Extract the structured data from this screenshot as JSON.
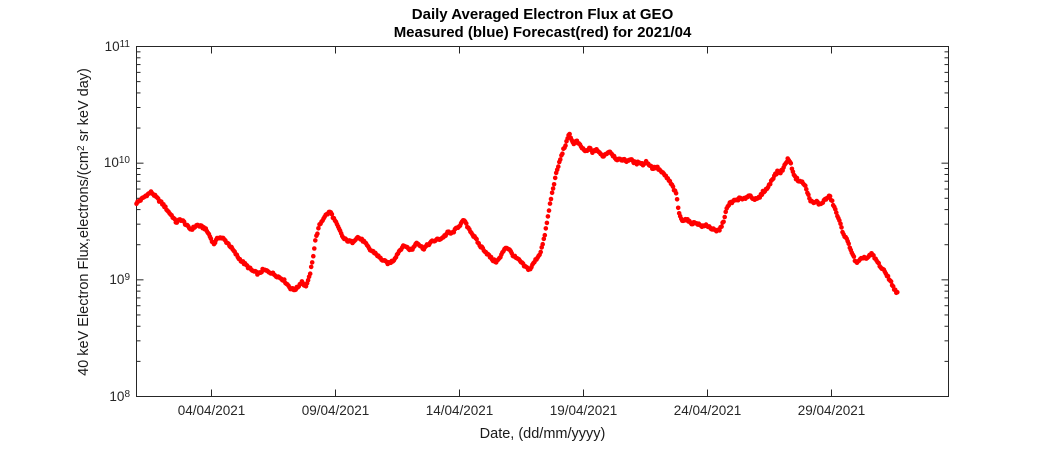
{
  "figure": {
    "title_line1": "Daily Averaged Electron Flux at GEO",
    "title_line2": "Measured (blue) Forecast(red) for 2021/04",
    "xlabel": "Date, (dd/mm/yyyy)",
    "ylabel_prefix": "40 keV Electron Flux,electrons/(cm",
    "ylabel_sup": "2",
    "ylabel_suffix": " sr keV day)"
  },
  "chart_data": {
    "type": "scatter",
    "title": "Daily Averaged Electron Flux at GEO",
    "subtitle": "Measured (blue) Forecast(red) for 2021/04",
    "xlabel": "Date, (dd/mm/yyyy)",
    "ylabel": "40 keV Electron Flux,electrons/(cm^2 sr keV day)",
    "grid": false,
    "legend_position": "none",
    "x_axis": {
      "unit": "days since 01/04/2021",
      "range_days": [
        0,
        32.73
      ],
      "tick_days": [
        3,
        8,
        13,
        18,
        23,
        28
      ],
      "tick_labels": [
        "04/04/2021",
        "09/04/2021",
        "14/04/2021",
        "19/04/2021",
        "24/04/2021",
        "29/04/2021"
      ]
    },
    "y_axis": {
      "scale": "log10",
      "range": [
        100000000.0,
        100000000000.0
      ],
      "tick_exponents": [
        8,
        9,
        10,
        11
      ],
      "tick_base": "10",
      "minor_log_ticks": true
    },
    "series": [
      {
        "name": "Forecast (red)",
        "color": "#ff0000",
        "marker": "dot",
        "marker_radius_px": 2.3,
        "flux_unit_multiplier": 1000000000.0,
        "keypoints_day_flux1e9": [
          [
            0,
            4.55
          ],
          [
            0.2,
            4.9
          ],
          [
            0.42,
            5.35
          ],
          [
            0.6,
            5.65
          ],
          [
            0.85,
            4.95
          ],
          [
            1.1,
            4.35
          ],
          [
            1.3,
            3.8
          ],
          [
            1.45,
            3.5
          ],
          [
            1.6,
            3.1
          ],
          [
            1.77,
            3.3
          ],
          [
            1.9,
            3.15
          ],
          [
            2.05,
            2.87
          ],
          [
            2.2,
            2.7
          ],
          [
            2.45,
            2.95
          ],
          [
            2.6,
            2.86
          ],
          [
            2.75,
            2.77
          ],
          [
            2.9,
            2.5
          ],
          [
            3.11,
            2.02
          ],
          [
            3.31,
            2.33
          ],
          [
            3.5,
            2.25
          ],
          [
            3.72,
            2.02
          ],
          [
            3.85,
            1.85
          ],
          [
            4.12,
            1.53
          ],
          [
            4.39,
            1.35
          ],
          [
            4.66,
            1.2
          ],
          [
            4.93,
            1.12
          ],
          [
            5.1,
            1.22
          ],
          [
            5.4,
            1.16
          ],
          [
            5.66,
            1.08
          ],
          [
            5.93,
            1.0
          ],
          [
            6.2,
            0.85
          ],
          [
            6.34,
            0.82
          ],
          [
            6.47,
            0.85
          ],
          [
            6.67,
            0.97
          ],
          [
            6.81,
            0.87
          ],
          [
            6.94,
            1.0
          ],
          [
            7.08,
            1.38
          ],
          [
            7.21,
            2.2
          ],
          [
            7.38,
            2.95
          ],
          [
            7.58,
            3.5
          ],
          [
            7.81,
            3.85
          ],
          [
            8.05,
            3.05
          ],
          [
            8.35,
            2.25
          ],
          [
            8.55,
            2.15
          ],
          [
            8.7,
            2.1
          ],
          [
            8.9,
            2.33
          ],
          [
            9.15,
            2.15
          ],
          [
            9.42,
            1.8
          ],
          [
            9.62,
            1.7
          ],
          [
            9.82,
            1.53
          ],
          [
            10.02,
            1.43
          ],
          [
            10.16,
            1.38
          ],
          [
            10.36,
            1.47
          ],
          [
            10.56,
            1.73
          ],
          [
            10.7,
            1.9
          ],
          [
            10.83,
            1.96
          ],
          [
            10.96,
            1.85
          ],
          [
            11.1,
            1.8
          ],
          [
            11.3,
            2.12
          ],
          [
            11.43,
            1.96
          ],
          [
            11.57,
            1.85
          ],
          [
            11.7,
            1.96
          ],
          [
            11.9,
            2.12
          ],
          [
            12.1,
            2.2
          ],
          [
            12.3,
            2.27
          ],
          [
            12.44,
            2.4
          ],
          [
            12.57,
            2.57
          ],
          [
            12.7,
            2.48
          ],
          [
            12.84,
            2.67
          ],
          [
            12.97,
            2.86
          ],
          [
            13.1,
            3.06
          ],
          [
            13.21,
            3.25
          ],
          [
            13.3,
            2.95
          ],
          [
            13.44,
            2.67
          ],
          [
            13.57,
            2.4
          ],
          [
            13.7,
            2.2
          ],
          [
            13.84,
            1.96
          ],
          [
            13.97,
            1.85
          ],
          [
            14.11,
            1.7
          ],
          [
            14.24,
            1.58
          ],
          [
            14.38,
            1.47
          ],
          [
            14.51,
            1.43
          ],
          [
            14.66,
            1.55
          ],
          [
            14.86,
            1.9
          ],
          [
            15.0,
            1.85
          ],
          [
            15.2,
            1.6
          ],
          [
            15.45,
            1.45
          ],
          [
            15.65,
            1.3
          ],
          [
            15.85,
            1.22
          ],
          [
            16.06,
            1.45
          ],
          [
            16.26,
            1.67
          ],
          [
            16.4,
            2.1
          ],
          [
            16.53,
            2.95
          ],
          [
            16.67,
            4.5
          ],
          [
            16.8,
            6.25
          ],
          [
            16.94,
            8.5
          ],
          [
            17.07,
            10.6
          ],
          [
            17.2,
            12.9
          ],
          [
            17.34,
            15.2
          ],
          [
            17.45,
            18.0
          ],
          [
            17.6,
            14.7
          ],
          [
            17.74,
            15.4
          ],
          [
            17.87,
            14.2
          ],
          [
            18.0,
            13.2
          ],
          [
            18.14,
            12.5
          ],
          [
            18.27,
            13.5
          ],
          [
            18.4,
            12.3
          ],
          [
            18.54,
            13.2
          ],
          [
            18.67,
            12.1
          ],
          [
            18.81,
            11.5
          ],
          [
            18.94,
            12.1
          ],
          [
            19.07,
            12.7
          ],
          [
            19.21,
            11.7
          ],
          [
            19.34,
            10.9
          ],
          [
            19.48,
            10.6
          ],
          [
            19.61,
            10.8
          ],
          [
            19.74,
            10.4
          ],
          [
            19.88,
            10.8
          ],
          [
            20.01,
            10.4
          ],
          [
            20.15,
            9.9
          ],
          [
            20.28,
            10.3
          ],
          [
            20.42,
            9.7
          ],
          [
            20.55,
            10.3
          ],
          [
            20.69,
            9.6
          ],
          [
            20.82,
            9.0
          ],
          [
            20.96,
            9.3
          ],
          [
            21.09,
            8.7
          ],
          [
            21.23,
            8.1
          ],
          [
            21.36,
            7.6
          ],
          [
            21.5,
            6.9
          ],
          [
            21.63,
            6.2
          ],
          [
            21.77,
            5.3
          ],
          [
            21.83,
            4.2
          ],
          [
            21.9,
            3.5
          ],
          [
            21.97,
            3.3
          ],
          [
            22.03,
            3.25
          ],
          [
            22.17,
            3.3
          ],
          [
            22.3,
            3.1
          ],
          [
            22.43,
            3.05
          ],
          [
            22.57,
            3.1
          ],
          [
            22.7,
            2.95
          ],
          [
            22.84,
            2.86
          ],
          [
            22.97,
            2.95
          ],
          [
            23.11,
            2.82
          ],
          [
            23.24,
            2.7
          ],
          [
            23.38,
            2.6
          ],
          [
            23.51,
            2.7
          ],
          [
            23.65,
            3.1
          ],
          [
            23.72,
            3.6
          ],
          [
            23.78,
            4.0
          ],
          [
            23.85,
            4.25
          ],
          [
            23.92,
            4.55
          ],
          [
            24.05,
            4.7
          ],
          [
            24.19,
            4.85
          ],
          [
            24.32,
            5.0
          ],
          [
            24.45,
            4.85
          ],
          [
            24.59,
            5.15
          ],
          [
            24.72,
            5.3
          ],
          [
            24.86,
            5.0
          ],
          [
            24.99,
            4.85
          ],
          [
            25.13,
            5.15
          ],
          [
            25.26,
            5.7
          ],
          [
            25.4,
            6.0
          ],
          [
            25.53,
            6.6
          ],
          [
            25.6,
            7.2
          ],
          [
            25.73,
            7.9
          ],
          [
            25.87,
            8.6
          ],
          [
            25.93,
            8.2
          ],
          [
            26.07,
            9.0
          ],
          [
            26.2,
            10.3
          ],
          [
            26.27,
            11.0
          ],
          [
            26.34,
            10.3
          ],
          [
            26.47,
            8.4
          ],
          [
            26.54,
            7.6
          ],
          [
            26.67,
            7.15
          ],
          [
            26.81,
            6.9
          ],
          [
            26.94,
            6.5
          ],
          [
            27.08,
            5.3
          ],
          [
            27.14,
            4.9
          ],
          [
            27.28,
            4.5
          ],
          [
            27.41,
            4.7
          ],
          [
            27.55,
            4.4
          ],
          [
            27.68,
            4.7
          ],
          [
            27.82,
            5.0
          ],
          [
            27.95,
            5.2
          ],
          [
            28.09,
            4.4
          ],
          [
            28.22,
            3.7
          ],
          [
            28.36,
            3.05
          ],
          [
            28.49,
            2.5
          ],
          [
            28.63,
            2.2
          ],
          [
            28.76,
            1.9
          ],
          [
            28.83,
            1.73
          ],
          [
            28.96,
            1.47
          ],
          [
            29.03,
            1.38
          ],
          [
            29.17,
            1.47
          ],
          [
            29.3,
            1.57
          ],
          [
            29.44,
            1.52
          ],
          [
            29.57,
            1.62
          ],
          [
            29.64,
            1.67
          ],
          [
            29.77,
            1.52
          ],
          [
            29.91,
            1.38
          ],
          [
            30.04,
            1.25
          ],
          [
            30.18,
            1.16
          ],
          [
            30.31,
            1.05
          ],
          [
            30.45,
            0.92
          ],
          [
            30.58,
            0.81
          ],
          [
            30.67,
            0.77
          ]
        ]
      }
    ],
    "style": {
      "axis_color": "#262626",
      "background": "#ffffff",
      "marker_color": "#ff0000"
    }
  }
}
